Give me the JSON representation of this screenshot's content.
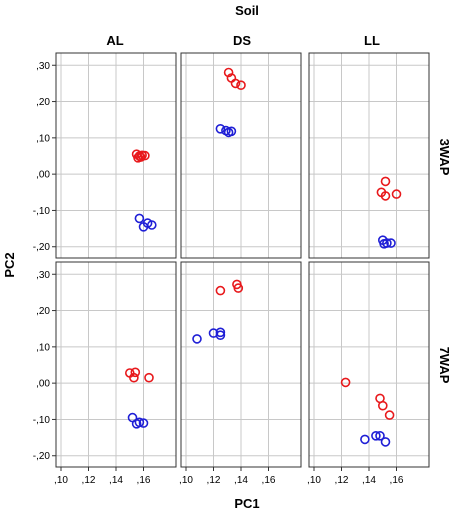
{
  "chart_data": {
    "type": "scatter",
    "title": "Soil",
    "xlabel": "PC1",
    "ylabel": "PC2",
    "xlim": [
      0.1,
      0.18
    ],
    "ylim": [
      -0.22,
      0.32
    ],
    "x_ticks": [
      0.1,
      0.12,
      0.14,
      0.16
    ],
    "x_tick_labels": [
      ",10",
      ",12",
      ",14",
      ",16"
    ],
    "y_ticks": [
      0.3,
      0.2,
      0.1,
      0.0,
      -0.1,
      -0.2
    ],
    "y_tick_labels": [
      ",30",
      ",20",
      ",10",
      ",00",
      "-,10",
      "-,20"
    ],
    "grid": true,
    "col_facets": [
      "AL",
      "DS",
      "LL"
    ],
    "row_facets": [
      "3WAP",
      "7WAP"
    ],
    "colors": {
      "red": "#e8191c",
      "blue": "#1f1fd6",
      "grid": "#c8c8c8"
    },
    "panels": [
      {
        "col": "AL",
        "row": "3WAP",
        "series": [
          {
            "color": "red",
            "points": [
              [
                0.155,
                0.055
              ],
              [
                0.157,
                0.05
              ],
              [
                0.159,
                0.052
              ],
              [
                0.161,
                0.051
              ],
              [
                0.156,
                0.045
              ],
              [
                0.158,
                0.047
              ]
            ]
          },
          {
            "color": "blue",
            "points": [
              [
                0.157,
                -0.122
              ],
              [
                0.16,
                -0.145
              ],
              [
                0.163,
                -0.135
              ],
              [
                0.166,
                -0.14
              ]
            ]
          }
        ]
      },
      {
        "col": "DS",
        "row": "3WAP",
        "series": [
          {
            "color": "red",
            "points": [
              [
                0.131,
                0.28
              ],
              [
                0.133,
                0.265
              ],
              [
                0.136,
                0.25
              ],
              [
                0.14,
                0.245
              ]
            ]
          },
          {
            "color": "blue",
            "points": [
              [
                0.125,
                0.125
              ],
              [
                0.129,
                0.12
              ],
              [
                0.131,
                0.115
              ],
              [
                0.133,
                0.118
              ]
            ]
          }
        ]
      },
      {
        "col": "LL",
        "row": "3WAP",
        "series": [
          {
            "color": "red",
            "points": [
              [
                0.152,
                -0.02
              ],
              [
                0.149,
                -0.05
              ],
              [
                0.152,
                -0.06
              ],
              [
                0.16,
                -0.055
              ]
            ]
          },
          {
            "color": "blue",
            "points": [
              [
                0.15,
                -0.182
              ],
              [
                0.151,
                -0.192
              ],
              [
                0.153,
                -0.19
              ],
              [
                0.156,
                -0.19
              ]
            ]
          }
        ]
      },
      {
        "col": "AL",
        "row": "7WAP",
        "series": [
          {
            "color": "red",
            "points": [
              [
                0.15,
                0.028
              ],
              [
                0.154,
                0.03
              ],
              [
                0.153,
                0.015
              ],
              [
                0.164,
                0.015
              ]
            ]
          },
          {
            "color": "blue",
            "points": [
              [
                0.152,
                -0.095
              ],
              [
                0.155,
                -0.112
              ],
              [
                0.157,
                -0.108
              ],
              [
                0.16,
                -0.11
              ]
            ]
          }
        ]
      },
      {
        "col": "DS",
        "row": "7WAP",
        "series": [
          {
            "color": "red",
            "points": [
              [
                0.125,
                0.255
              ],
              [
                0.137,
                0.272
              ],
              [
                0.138,
                0.262
              ]
            ]
          },
          {
            "color": "blue",
            "points": [
              [
                0.108,
                0.122
              ],
              [
                0.12,
                0.138
              ],
              [
                0.125,
                0.14
              ],
              [
                0.125,
                0.132
              ]
            ]
          }
        ]
      },
      {
        "col": "LL",
        "row": "7WAP",
        "series": [
          {
            "color": "red",
            "points": [
              [
                0.123,
                0.002
              ],
              [
                0.148,
                -0.042
              ],
              [
                0.15,
                -0.062
              ],
              [
                0.155,
                -0.088
              ]
            ]
          },
          {
            "color": "blue",
            "points": [
              [
                0.137,
                -0.155
              ],
              [
                0.145,
                -0.145
              ],
              [
                0.148,
                -0.145
              ],
              [
                0.152,
                -0.162
              ]
            ]
          }
        ]
      }
    ]
  }
}
